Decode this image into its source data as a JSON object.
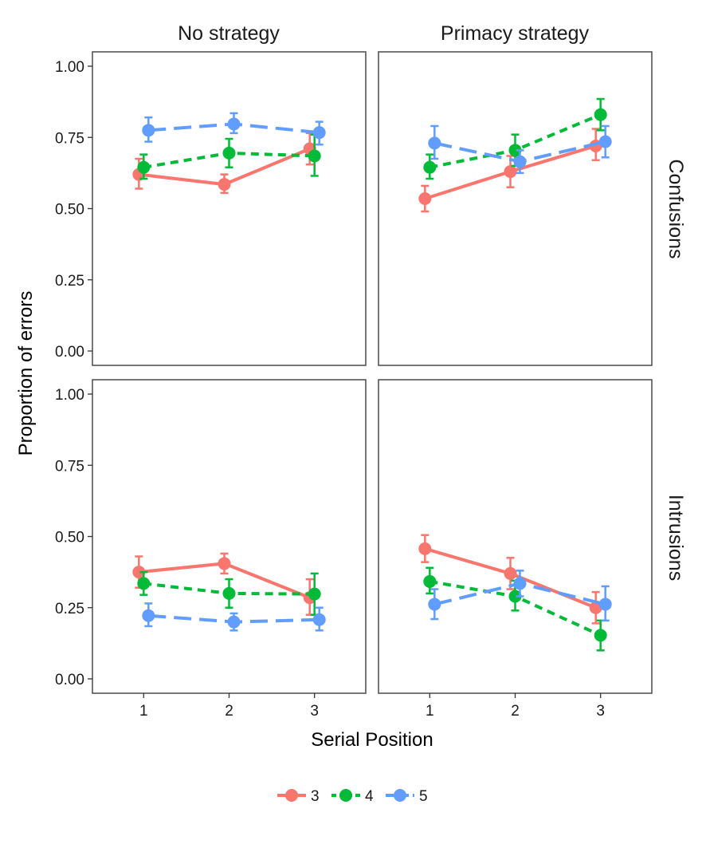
{
  "chart_data": {
    "type": "line",
    "xlabel": "Serial Position",
    "ylabel": "Proportion of errors",
    "x": [
      1,
      2,
      3
    ],
    "x_ticks": [
      "1",
      "2",
      "3"
    ],
    "y_ticks": [
      "0.00",
      "0.25",
      "0.50",
      "0.75",
      "1.00"
    ],
    "ylim": [
      0,
      1
    ],
    "grid": false,
    "legend_position": "bottom",
    "columns": [
      "No strategy",
      "Primacy strategy"
    ],
    "rows": [
      "Confusions",
      "Intrusions"
    ],
    "series_styles": [
      {
        "name": "3",
        "color": "#F8766D",
        "dash": "solid"
      },
      {
        "name": "4",
        "color": "#00BA38",
        "dash": "dotted"
      },
      {
        "name": "5",
        "color": "#619CFF",
        "dash": "dashed"
      }
    ],
    "panels": [
      {
        "column": "No strategy",
        "row": "Confusions",
        "series": [
          {
            "name": "3",
            "values": [
              0.62,
              0.585,
              0.71
            ],
            "lower": [
              0.57,
              0.555,
              0.655
            ],
            "upper": [
              0.675,
              0.62,
              0.765
            ]
          },
          {
            "name": "4",
            "values": [
              0.645,
              0.695,
              0.685
            ],
            "lower": [
              0.605,
              0.645,
              0.615
            ],
            "upper": [
              0.69,
              0.745,
              0.76
            ]
          },
          {
            "name": "5",
            "values": [
              0.775,
              0.797,
              0.767
            ],
            "lower": [
              0.735,
              0.765,
              0.725
            ],
            "upper": [
              0.82,
              0.835,
              0.805
            ]
          }
        ]
      },
      {
        "column": "Primacy strategy",
        "row": "Confusions",
        "series": [
          {
            "name": "3",
            "values": [
              0.535,
              0.63,
              0.72
            ],
            "lower": [
              0.49,
              0.575,
              0.67
            ],
            "upper": [
              0.58,
              0.685,
              0.78
            ]
          },
          {
            "name": "4",
            "values": [
              0.645,
              0.705,
              0.83
            ],
            "lower": [
              0.605,
              0.65,
              0.775
            ],
            "upper": [
              0.69,
              0.76,
              0.885
            ]
          },
          {
            "name": "5",
            "values": [
              0.73,
              0.665,
              0.735
            ],
            "lower": [
              0.675,
              0.625,
              0.68
            ],
            "upper": [
              0.79,
              0.705,
              0.79
            ]
          }
        ]
      },
      {
        "column": "No strategy",
        "row": "Intrusions",
        "series": [
          {
            "name": "3",
            "values": [
              0.375,
              0.405,
              0.285
            ],
            "lower": [
              0.32,
              0.37,
              0.225
            ],
            "upper": [
              0.43,
              0.44,
              0.35
            ]
          },
          {
            "name": "4",
            "values": [
              0.335,
              0.3,
              0.298
            ],
            "lower": [
              0.295,
              0.25,
              0.225
            ],
            "upper": [
              0.375,
              0.35,
              0.37
            ]
          },
          {
            "name": "5",
            "values": [
              0.222,
              0.2,
              0.208
            ],
            "lower": [
              0.185,
              0.17,
              0.17
            ],
            "upper": [
              0.265,
              0.23,
              0.25
            ]
          }
        ]
      },
      {
        "column": "Primacy strategy",
        "row": "Intrusions",
        "series": [
          {
            "name": "3",
            "values": [
              0.457,
              0.37,
              0.25
            ],
            "lower": [
              0.41,
              0.315,
              0.195
            ],
            "upper": [
              0.505,
              0.425,
              0.305
            ]
          },
          {
            "name": "4",
            "values": [
              0.342,
              0.29,
              0.153
            ],
            "lower": [
              0.3,
              0.24,
              0.1
            ],
            "upper": [
              0.39,
              0.345,
              0.205
            ]
          },
          {
            "name": "5",
            "values": [
              0.262,
              0.335,
              0.262
            ],
            "lower": [
              0.21,
              0.29,
              0.205
            ],
            "upper": [
              0.315,
              0.38,
              0.325
            ]
          }
        ]
      }
    ]
  }
}
